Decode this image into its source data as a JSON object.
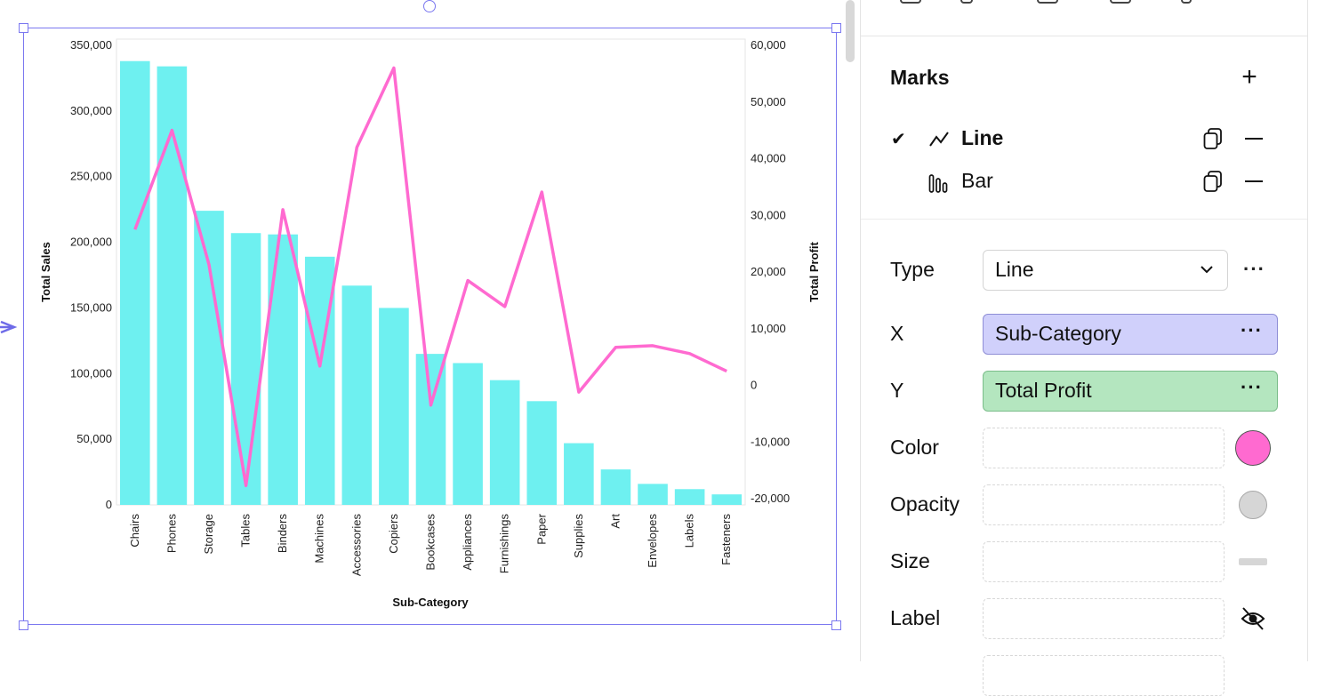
{
  "chart_data": {
    "type": "bar+line",
    "categories": [
      "Chairs",
      "Phones",
      "Storage",
      "Tables",
      "Binders",
      "Machines",
      "Accessories",
      "Copiers",
      "Bookcases",
      "Appliances",
      "Furnishings",
      "Paper",
      "Supplies",
      "Art",
      "Envelopes",
      "Labels",
      "Fasteners"
    ],
    "series": [
      {
        "name": "Total Sales",
        "mark": "bar",
        "axis": "left",
        "values": [
          338000,
          334000,
          224000,
          207000,
          206000,
          189000,
          167000,
          150000,
          115000,
          108000,
          95000,
          79000,
          47000,
          27000,
          16000,
          12000,
          8000
        ]
      },
      {
        "name": "Total Profit",
        "mark": "line",
        "axis": "right",
        "values": [
          27500,
          45000,
          21300,
          -17700,
          31000,
          3400,
          42000,
          56000,
          -3500,
          18500,
          13900,
          34100,
          -1200,
          6700,
          7000,
          5600,
          2500
        ]
      }
    ],
    "xlabel": "Sub-Category",
    "ylabel_left": "Total Sales",
    "ylabel_right": "Total Profit",
    "ylim_left": [
      0,
      350000
    ],
    "ylim_right": [
      -20000,
      60000
    ],
    "yticks_left": [
      "0",
      "50,000",
      "100,000",
      "150,000",
      "200,000",
      "250,000",
      "300,000",
      "350,000"
    ],
    "yticks_right": [
      "-20,000",
      "-10,000",
      "0",
      "10,000",
      "20,000",
      "30,000",
      "40,000",
      "50,000",
      "60,000"
    ],
    "colors": {
      "bar": "#6ef0f0",
      "line": "#ff6ad0"
    },
    "grid": false
  },
  "panel": {
    "marks_title": "Marks",
    "marks": [
      {
        "label": "Line",
        "selected": true,
        "icon": "line-chart-icon"
      },
      {
        "label": "Bar",
        "selected": false,
        "icon": "bar-chart-icon"
      }
    ],
    "properties": {
      "type_label": "Type",
      "type_value": "Line",
      "x_label": "X",
      "x_value": "Sub-Category",
      "y_label": "Y",
      "y_value": "Total Profit",
      "color_label": "Color",
      "color_value": "#ff6ad0",
      "opacity_label": "Opacity",
      "size_label": "Size",
      "label_label": "Label"
    },
    "more_dots": "···"
  }
}
